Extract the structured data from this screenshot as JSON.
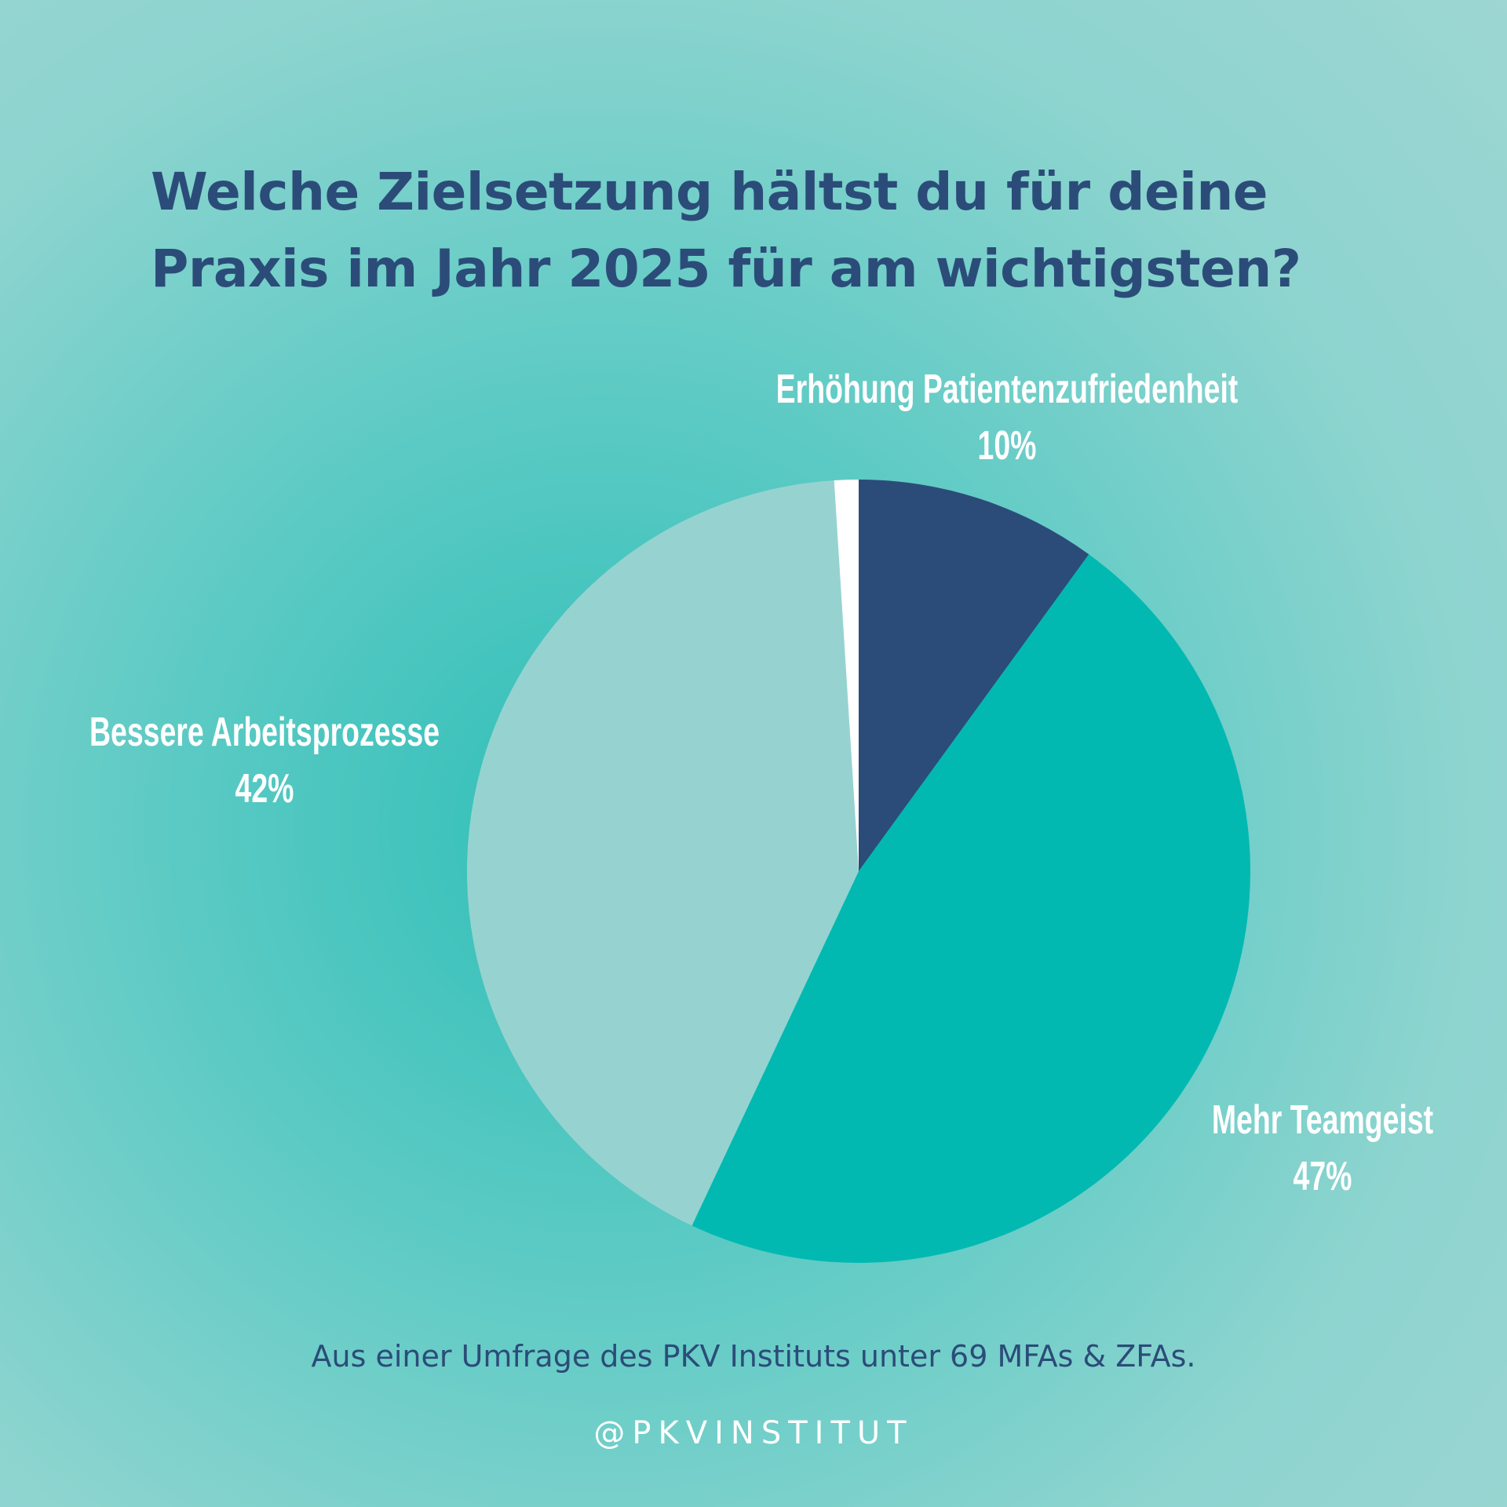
{
  "chart_data": {
    "type": "pie",
    "title": "Welche Zielsetzung hältst du für deine Praxis im Jahr 2025 für am wichtigsten?",
    "title_lines": [
      "Welche Zielsetzung hältst du für deine",
      "Praxis im Jahr 2025 für am wichtigsten?"
    ],
    "start": "top, clockwise",
    "slices": [
      {
        "label": "Erhöhung Patientenzufriedenheit",
        "value": 10,
        "value_label": "10%",
        "color": "#2b4c78"
      },
      {
        "label": "Mehr Teamgeist",
        "value": 47,
        "value_label": "47%",
        "color": "#02b9b2"
      },
      {
        "label": "Bessere Arbeitsprozesse",
        "value": 42,
        "value_label": "42%",
        "color": "#96d3d0"
      },
      {
        "label": "",
        "value": 1,
        "value_label": "",
        "color": "#ffffff"
      }
    ]
  },
  "footer": "Aus einer Umfrage des PKV Instituts unter 69 MFAs & ZFAs.",
  "handle": "@PKVINSTITUT"
}
